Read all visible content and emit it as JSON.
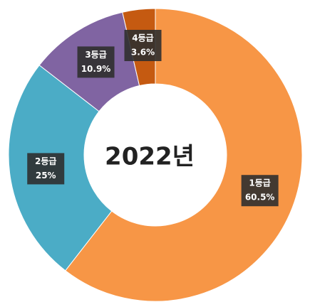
{
  "chart_data": {
    "type": "donut",
    "title": "2022년",
    "categories": [
      "1등급",
      "2등급",
      "3등급",
      "4등급"
    ],
    "values": [
      60.5,
      25,
      10.9,
      3.6
    ],
    "value_labels": [
      "60.5%",
      "25%",
      "10.9%",
      "3.6%"
    ],
    "colors": [
      "#f79646",
      "#4bacc6",
      "#8064a2",
      "#c55a11"
    ]
  }
}
